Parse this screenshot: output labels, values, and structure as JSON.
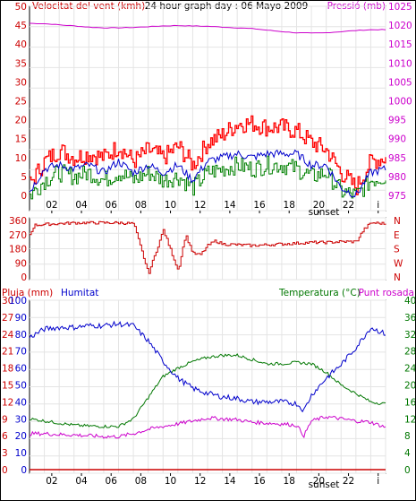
{
  "chart_data": [
    {
      "type": "line",
      "header": {
        "left": "Velocitat del vent (kmh)",
        "center": "24 hour graph day : 06 Mayo 2009",
        "right": "Pressió (mb)"
      },
      "ylim_left": [
        0,
        50
      ],
      "yticks_left": [
        "0",
        "5",
        "10",
        "15",
        "20",
        "25",
        "30",
        "35",
        "40",
        "45",
        "50"
      ],
      "ylim_right": [
        975,
        1025
      ],
      "yticks_right": [
        "975",
        "980",
        "985",
        "990",
        "995",
        "1000",
        "1005",
        "1010",
        "1015",
        "1020",
        "1025"
      ],
      "xticks": [
        "02",
        "04",
        "06",
        "08",
        "10",
        "12",
        "14",
        "16",
        "18",
        "20",
        "22",
        "i"
      ],
      "sunset_label": "sunset",
      "grid": true,
      "colors": {
        "gust": "#ff0000",
        "wind": "#0000cc",
        "wind_low": "#008000",
        "pressure": "#cc00cc",
        "left_axis": "#cc0000",
        "right_axis": "#cc00cc"
      },
      "series": [
        {
          "axis": "right",
          "x": [
            0,
            1,
            2,
            3,
            4,
            5,
            6,
            7,
            8,
            9,
            10,
            11,
            12,
            13,
            14,
            15,
            16,
            17,
            18,
            19,
            20,
            21,
            22,
            23,
            24
          ],
          "values": [
            1020.5,
            1020.4,
            1020.1,
            1019.8,
            1019.5,
            1019.3,
            1019.3,
            1019.4,
            1019.6,
            1019.8,
            1019.9,
            1019.8,
            1019.7,
            1019.5,
            1019.3,
            1019.1,
            1018.7,
            1018.3,
            1018,
            1017.9,
            1018,
            1018.3,
            1018.6,
            1018.8,
            1018.8
          ]
        },
        {
          "x": [
            0,
            1,
            2,
            3,
            4,
            5,
            6,
            7,
            8,
            9,
            10,
            11,
            12,
            13,
            14,
            15,
            16,
            17,
            18,
            19,
            20,
            21,
            22,
            23,
            24
          ],
          "values": [
            3,
            9,
            12,
            10,
            11,
            10,
            13,
            9,
            12,
            10,
            13,
            8,
            14,
            16,
            19,
            19,
            18,
            18,
            17,
            14,
            12,
            6,
            2,
            9,
            10
          ]
        },
        {
          "x": [
            0,
            1,
            2,
            3,
            4,
            5,
            6,
            7,
            8,
            9,
            10,
            11,
            12,
            13,
            14,
            15,
            16,
            17,
            18,
            19,
            20,
            21,
            22,
            23,
            24
          ],
          "values": [
            1,
            7,
            8,
            7,
            8,
            6,
            9,
            6,
            8,
            6,
            8,
            4,
            9,
            10,
            11,
            10,
            11,
            11,
            11,
            8,
            8,
            2,
            0,
            6,
            7
          ]
        },
        {
          "x": [
            0,
            1,
            2,
            3,
            4,
            5,
            6,
            7,
            8,
            9,
            10,
            11,
            12,
            13,
            14,
            15,
            16,
            17,
            18,
            19,
            20,
            21,
            22,
            23,
            24
          ],
          "values": [
            0,
            4,
            6,
            5,
            6,
            4,
            6,
            4,
            6,
            4,
            5,
            2,
            6,
            7,
            8,
            7,
            8,
            8,
            7,
            5,
            6,
            1,
            0,
            4,
            5
          ]
        }
      ]
    },
    {
      "type": "line",
      "ylim": [
        0,
        360
      ],
      "yticks": [
        "0",
        "90",
        "180",
        "270",
        "360"
      ],
      "compass": [
        "N",
        "W",
        "S",
        "E",
        "N"
      ],
      "xticks": [
        "02",
        "04",
        "06",
        "08",
        "10",
        "12",
        "14",
        "16",
        "18",
        "20",
        "22",
        "i"
      ],
      "grid": true,
      "colors": {
        "direction": "#cc0000",
        "axis": "#cc0000"
      },
      "series": [
        {
          "x": [
            0,
            0.3,
            1,
            2,
            3,
            4,
            5,
            6,
            7,
            8,
            9,
            10,
            10.5,
            11,
            11.5,
            12,
            12.5,
            13,
            14,
            15,
            16,
            17,
            18,
            19,
            20,
            21,
            22,
            22.5,
            23,
            24
          ],
          "values": [
            270,
            330,
            335,
            340,
            345,
            345,
            345,
            345,
            340,
            20,
            300,
            40,
            270,
            150,
            140,
            200,
            230,
            210,
            205,
            200,
            205,
            210,
            215,
            220,
            220,
            225,
            225,
            300,
            345,
            340
          ]
        }
      ]
    },
    {
      "type": "line",
      "header": {
        "left_rain": "Pluja (mm)",
        "left_humidity": "Humitat",
        "right_temperature": "Temperatura (°C)",
        "right_dewpoint": "Punt rosada"
      },
      "ylim_rain": [
        0,
        30
      ],
      "yticks_rain": [
        "0",
        "3",
        "6",
        "9",
        "12",
        "15",
        "18",
        "21",
        "24",
        "27",
        "30"
      ],
      "ylim_humidity": [
        0,
        100
      ],
      "yticks_humidity": [
        "0",
        "10",
        "20",
        "30",
        "40",
        "50",
        "60",
        "70",
        "80",
        "90",
        "100"
      ],
      "ylim_temperature": [
        0,
        40
      ],
      "yticks_temperature": [
        "0",
        "4",
        "8",
        "12",
        "16",
        "20",
        "24",
        "28",
        "32",
        "36",
        "40"
      ],
      "xticks": [
        "02",
        "04",
        "06",
        "08",
        "10",
        "12",
        "14",
        "16",
        "18",
        "20",
        "22",
        "i"
      ],
      "sunset_label": "sunset",
      "grid": true,
      "colors": {
        "rain": "#cc0000",
        "humidity": "#0000cc",
        "temperature": "#007700",
        "dewpoint": "#cc00cc"
      },
      "series": [
        {
          "axis": "rain",
          "x": [
            0,
            24
          ],
          "values": [
            0,
            0
          ]
        },
        {
          "axis": "humidity",
          "x": [
            0,
            1,
            2,
            3,
            4,
            5,
            6,
            7,
            8,
            9,
            10,
            11,
            12,
            13,
            14,
            15,
            16,
            17,
            18,
            18.5,
            19,
            20,
            21,
            22,
            23,
            24
          ],
          "values": [
            78,
            83,
            84,
            84,
            85,
            85,
            86,
            85,
            76,
            64,
            54,
            48,
            45,
            43,
            42,
            40,
            40,
            40,
            39,
            35,
            44,
            54,
            62,
            72,
            84,
            80
          ]
        },
        {
          "axis": "temperature",
          "x": [
            0,
            1,
            2,
            3,
            4,
            5,
            6,
            7,
            8,
            9,
            10,
            11,
            12,
            13,
            14,
            15,
            16,
            17,
            18,
            19,
            20,
            21,
            22,
            23,
            24
          ],
          "values": [
            12,
            11.5,
            11,
            10.5,
            10.3,
            10.2,
            10.2,
            12,
            17,
            22,
            24,
            25.5,
            26.5,
            27,
            27,
            26,
            25,
            25,
            25.3,
            25,
            23,
            20,
            18,
            16,
            15.5
          ]
        },
        {
          "axis": "temperature",
          "x": [
            0,
            1,
            2,
            3,
            4,
            5,
            6,
            7,
            8,
            9,
            10,
            11,
            12,
            13,
            14,
            15,
            16,
            17,
            18,
            18.5,
            19,
            20,
            21,
            22,
            23,
            24
          ],
          "values": [
            8.5,
            8.5,
            8.3,
            8.2,
            8,
            7.8,
            7.8,
            8.5,
            9.5,
            10.2,
            10.8,
            11.5,
            12.2,
            12,
            11.8,
            11.2,
            11,
            10.8,
            10.5,
            8,
            11.5,
            12.5,
            12,
            11.5,
            11.2,
            10
          ]
        }
      ]
    }
  ]
}
